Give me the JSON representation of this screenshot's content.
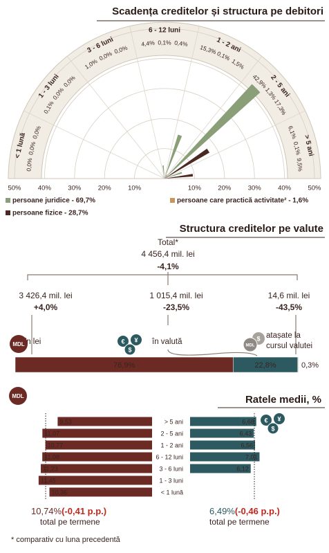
{
  "chart_data": [
    {
      "type": "polar-rose",
      "title": "Scadența creditelor și structura pe debitori",
      "categories": [
        "< 1 lună",
        "1 - 3 luni",
        "3 - 6 luni",
        "6 - 12 luni",
        "1 - 2 ani",
        "2 - 5 ani",
        "> 5 ani"
      ],
      "series": [
        {
          "name": "persoane juridice - 69,7%",
          "color": "#8a9e78",
          "values": [
            0.0,
            0.1,
            1.0,
            4.4,
            15.3,
            42.9,
            6.1
          ],
          "value_labels": [
            "0,0%",
            "0,1%",
            "1,0%",
            "4,4%",
            "15,3%",
            "42,9%",
            "6,1%"
          ]
        },
        {
          "name": "persoane care practică activitate² - 1,6%",
          "color": "#c8955a",
          "values": [
            0.0,
            0.0,
            0.0,
            0.1,
            0.1,
            1.3,
            0.1
          ],
          "value_labels": [
            "0,0%",
            "0,0%",
            "0,0%",
            "0,1%",
            "0,1%",
            "1,3%",
            "0,1%"
          ]
        },
        {
          "name": "persoane fizice - 28,7%",
          "color": "#4a2a22",
          "values": [
            0.0,
            0.0,
            0.0,
            0.4,
            1.5,
            17.3,
            9.5
          ],
          "value_labels": [
            "0,0%",
            "0,0%",
            "0,0%",
            "0,4%",
            "1,5%",
            "17,3%",
            "9,5%"
          ]
        }
      ],
      "rlim": [
        0,
        50
      ],
      "rticks": [
        {
          "value": 10,
          "label": "10%"
        },
        {
          "value": 20,
          "label": "20%"
        },
        {
          "value": 30,
          "label": "30%"
        },
        {
          "value": 40,
          "label": "40%"
        },
        {
          "value": 50,
          "label": "50%"
        }
      ]
    },
    {
      "type": "stacked-bar",
      "title": "Structura creditelor pe valute",
      "total": {
        "label": "Total*",
        "amount": "4 456,4 mil. lei",
        "change": "-4,1%"
      },
      "series": [
        {
          "name": "în lei",
          "color": "#6b2a24",
          "values": [
            76.9
          ],
          "value_labels": [
            "76,9%"
          ],
          "amount": "3 426,4 mil. lei",
          "change": "+4,0%"
        },
        {
          "name": "în valută",
          "color": "#2d5a60",
          "values": [
            22.8
          ],
          "value_labels": [
            "22,8%"
          ],
          "amount": "1 015,4 mil. lei",
          "change": "-23,5%"
        },
        {
          "name": "atașate la cursul valutei",
          "color": "#d9d1c4",
          "values": [
            0.3
          ],
          "value_labels": [
            "0,3%"
          ],
          "amount": "14,6 mil. lei",
          "change": "-43,5%"
        }
      ],
      "xlim": [
        0,
        100
      ]
    },
    {
      "type": "diverging-bar",
      "title": "Ratele medii, %",
      "categories": [
        "> 5 ani",
        "2 - 5 ani",
        "1 - 2 ani",
        "6 - 12 luni",
        "3 - 6 luni",
        "1 - 3 luni",
        "< 1 lună"
      ],
      "series": [
        {
          "side": "left",
          "color": "#6b2a24",
          "values": [
            9.53,
            11.07,
            10.77,
            11.08,
            11.23,
            11.45,
            10.36
          ],
          "value_labels": [
            "9,53",
            "11,07",
            "10,77",
            "11,08",
            "11,23",
            "11,45",
            "10,36"
          ],
          "total": {
            "value": 10.74,
            "value_label": "10,74%",
            "change": "(-0,41 p.p.)",
            "label": "total pe termene"
          }
        },
        {
          "side": "right",
          "color": "#2d5a60",
          "values": [
            6.68,
            6.43,
            6.56,
            7.01,
            6.12,
            null,
            null
          ],
          "value_labels": [
            "6,68",
            "6,43",
            "6,56",
            "7,01",
            "6,12",
            null,
            null
          ],
          "total": {
            "value": 6.49,
            "value_label": "6,49%",
            "change": "(-0,46 p.p.)",
            "label": "total pe termene"
          }
        }
      ],
      "xlim": [
        0,
        15
      ]
    }
  ],
  "icons": {
    "mdl": "MDL",
    "euro": "€",
    "dollar": "$",
    "yen": "¥"
  },
  "footnote": "* comparativ cu luna precedentă"
}
